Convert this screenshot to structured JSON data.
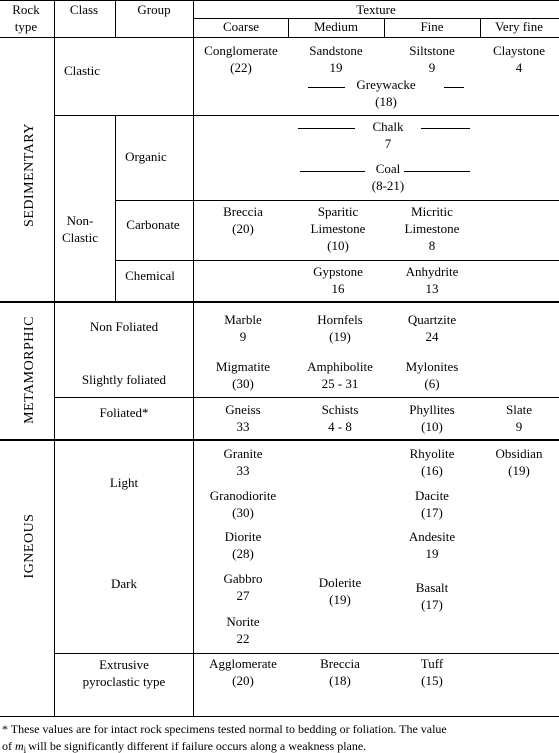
{
  "header": {
    "rock_type": [
      "Rock",
      "type"
    ],
    "class": "Class",
    "group": "Group",
    "texture": "Texture",
    "textures": [
      "Coarse",
      "Medium",
      "Fine",
      "Very fine"
    ]
  },
  "rock_types": [
    "SEDIMENTARY",
    "METAMORPHIC",
    "IGNEOUS"
  ],
  "classes": [
    "Clastic",
    [
      "Non-",
      "Clastic"
    ],
    "Non Foliated",
    "Slightly foliated",
    "Foliated*",
    "Light",
    "Dark",
    [
      "Extrusive",
      "pyroclastic type"
    ]
  ],
  "groups": [
    "Organic",
    "Carbonate",
    "Chemical"
  ],
  "rocks": [
    {
      "name": "Conglomerate",
      "value": "(22)"
    },
    {
      "name": "Sandstone",
      "value": "19"
    },
    {
      "name": "Siltstone",
      "value": "9"
    },
    {
      "name": "Claystone",
      "value": "4"
    },
    {
      "name": "Greywacke",
      "value": "(18)"
    },
    {
      "name": "Chalk",
      "value": "7"
    },
    {
      "name": "Coal",
      "value": "(8-21)"
    },
    {
      "name": "Breccia",
      "value": "(20)"
    },
    {
      "name": [
        "Sparitic",
        "Limestone"
      ],
      "value": "(10)"
    },
    {
      "name": [
        "Micritic",
        "Limestone"
      ],
      "value": "8"
    },
    {
      "name": "Gypstone",
      "value": "16"
    },
    {
      "name": "Anhydrite",
      "value": "13"
    },
    {
      "name": "Marble",
      "value": "9"
    },
    {
      "name": "Hornfels",
      "value": "(19)"
    },
    {
      "name": "Quartzite",
      "value": "24"
    },
    {
      "name": "Migmatite",
      "value": "(30)"
    },
    {
      "name": "Amphibolite",
      "value": "25 - 31"
    },
    {
      "name": "Mylonites",
      "value": "(6)"
    },
    {
      "name": "Gneiss",
      "value": "33"
    },
    {
      "name": "Schists",
      "value": "4 - 8"
    },
    {
      "name": "Phyllites",
      "value": "(10)"
    },
    {
      "name": "Slate",
      "value": "9"
    },
    {
      "name": "Granite",
      "value": "33"
    },
    {
      "name": "Rhyolite",
      "value": "(16)"
    },
    {
      "name": "Obsidian",
      "value": "(19)"
    },
    {
      "name": "Granodiorite",
      "value": "(30)"
    },
    {
      "name": "Dacite",
      "value": "(17)"
    },
    {
      "name": "Diorite",
      "value": "(28)"
    },
    {
      "name": "Andesite",
      "value": "19"
    },
    {
      "name": "Gabbro",
      "value": "27"
    },
    {
      "name": "Dolerite",
      "value": "(19)"
    },
    {
      "name": "Basalt",
      "value": "(17)"
    },
    {
      "name": "Norite",
      "value": "22"
    },
    {
      "name": "Agglomerate",
      "value": "(20)"
    },
    {
      "name": "Breccia",
      "value": "(18)"
    },
    {
      "name": "Tuff",
      "value": "(15)"
    }
  ],
  "footnote": {
    "line1": "* These values are for intact rock specimens tested normal to bedding or foliation. The value",
    "line2_start": "of ",
    "symbol": "m",
    "subscript": "i",
    "line2_end": "will be significantly different if failure occurs along a weakness plane."
  }
}
